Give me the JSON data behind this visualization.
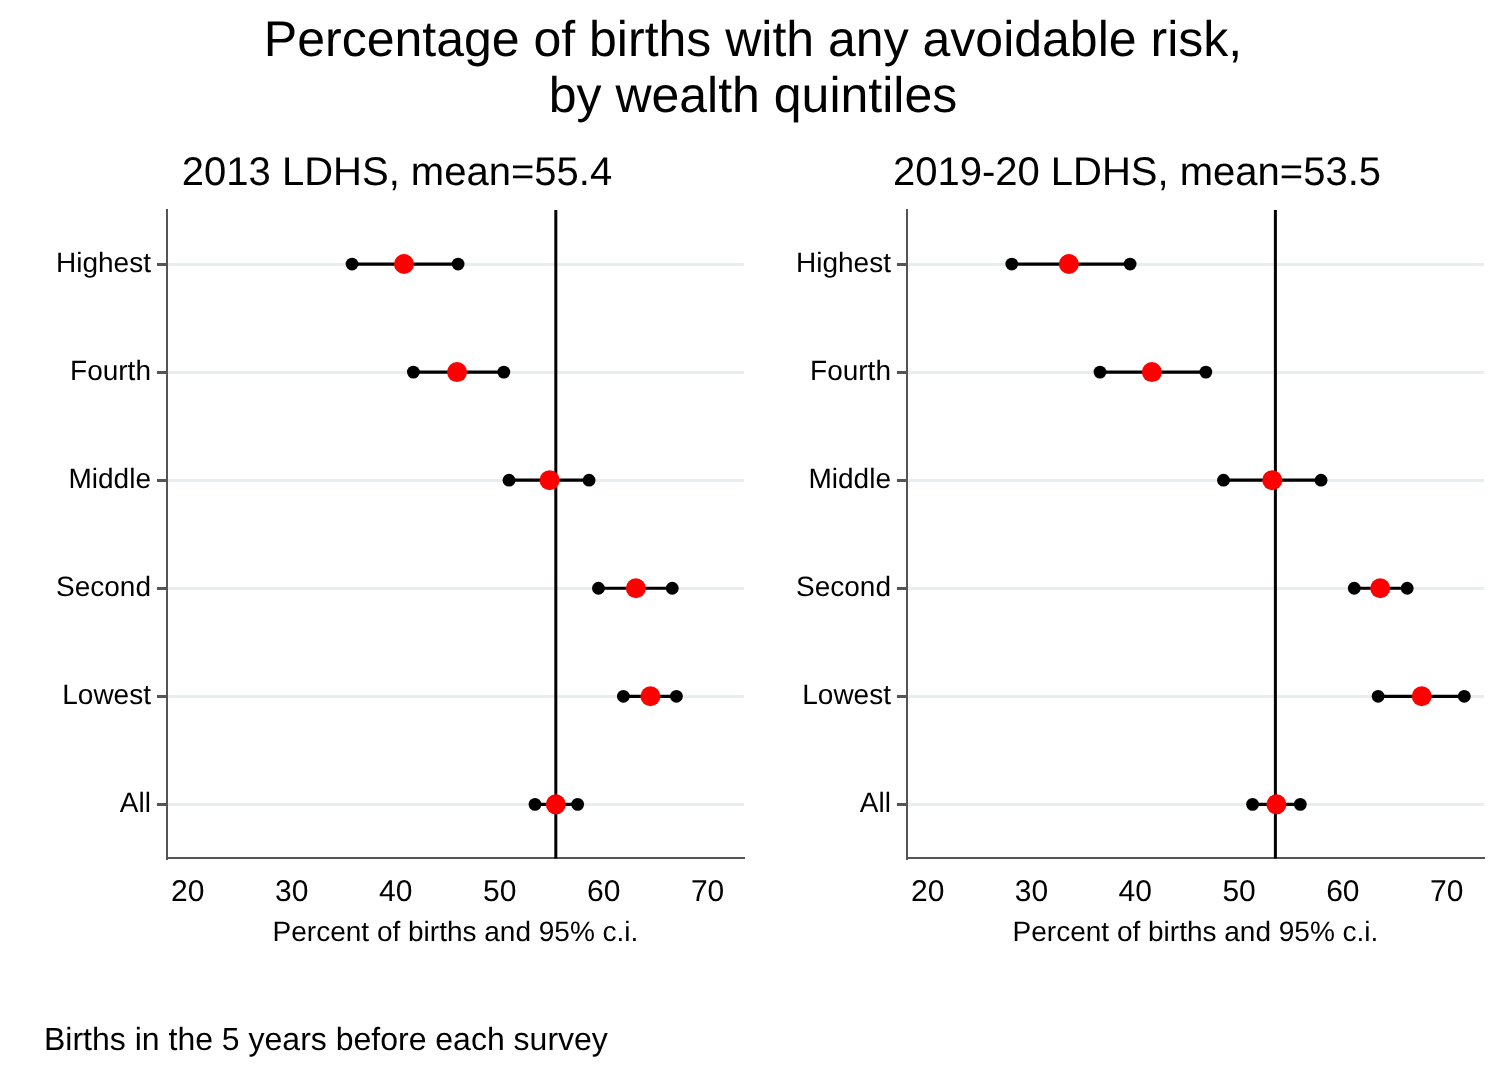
{
  "chart_data": [
    {
      "type": "scatter",
      "orientation": "horizontal",
      "title": "2013 LDHS, mean=55.4",
      "xlabel": "Percent of births and 95% c.i.",
      "annotations": [
        "Percentage of births with any avoidable risk,\nby wealth quintiles",
        "Births in the 5 years before each survey"
      ],
      "categories": [
        "Highest",
        "Fourth",
        "Middle",
        "Second",
        "Lowest",
        "All"
      ],
      "series": [
        {
          "color": "#000000",
          "values": [
            35.8,
            41.7,
            50.9,
            59.5,
            61.9,
            53.4
          ]
        },
        {
          "color": "#000000",
          "values": [
            46.0,
            50.4,
            58.6,
            66.6,
            67.0,
            57.5
          ]
        },
        {
          "color": "#ff0000",
          "values": [
            40.8,
            45.9,
            54.8,
            63.1,
            64.5,
            55.4
          ]
        }
      ],
      "xlim": [
        18,
        73.5
      ],
      "xticks": [
        20,
        30,
        40,
        50,
        60,
        70
      ],
      "grid": "y",
      "legend": false,
      "marker": "circle",
      "ref_lines": [
        {
          "axis": "x",
          "value": 55.4,
          "color": "#000000"
        }
      ]
    },
    {
      "type": "scatter",
      "orientation": "horizontal",
      "title": "2019-20 LDHS, mean=53.5",
      "xlabel": "Percent of births and 95% c.i.",
      "categories": [
        "Highest",
        "Fourth",
        "Middle",
        "Second",
        "Lowest",
        "All"
      ],
      "series": [
        {
          "color": "#000000",
          "values": [
            28.1,
            36.6,
            48.5,
            61.1,
            63.4,
            51.3
          ]
        },
        {
          "color": "#000000",
          "values": [
            39.5,
            46.8,
            57.9,
            66.2,
            71.7,
            55.9
          ]
        },
        {
          "color": "#ff0000",
          "values": [
            33.6,
            41.6,
            53.2,
            63.6,
            67.6,
            53.6
          ]
        }
      ],
      "xlim": [
        18,
        73.6
      ],
      "xticks": [
        20,
        30,
        40,
        50,
        60,
        70
      ],
      "grid": "y",
      "legend": false,
      "marker": "circle",
      "ref_lines": [
        {
          "axis": "x",
          "value": 53.5,
          "color": "#000000"
        }
      ]
    }
  ]
}
